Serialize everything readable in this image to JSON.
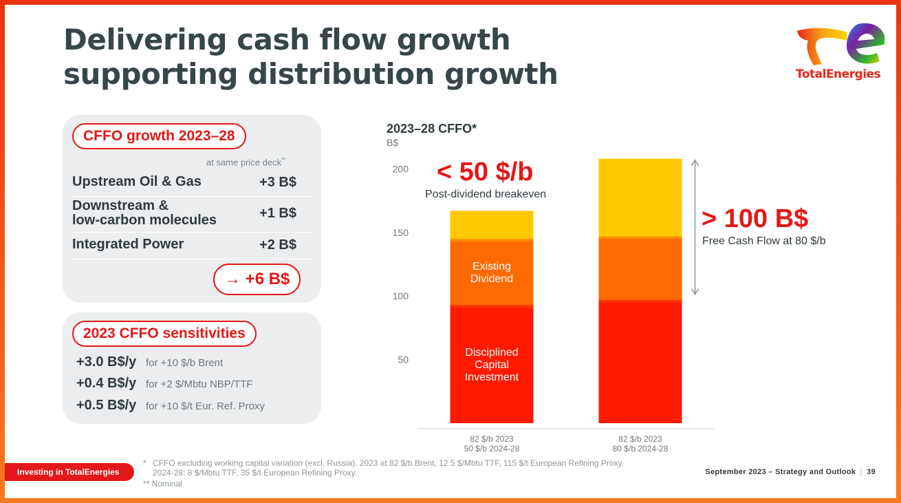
{
  "title": {
    "line1": "Delivering cash flow growth",
    "line2": "supporting distribution growth"
  },
  "brand": {
    "name": "TotalEnergies"
  },
  "growth_panel": {
    "heading": "CFFO growth 2023–28",
    "note": "at same price deck",
    "note_mark": "**",
    "rows": [
      {
        "label_line1": "Upstream Oil & Gas",
        "label_line2": "",
        "value": "+3 B$"
      },
      {
        "label_line1": "Downstream &",
        "label_line2": "low-carbon molecules",
        "value": "+1 B$"
      },
      {
        "label_line1": "Integrated Power",
        "label_line2": "",
        "value": "+2 B$"
      }
    ],
    "total": "+6 B$",
    "total_arrow": "→"
  },
  "sensitivities_panel": {
    "heading": "2023 CFFO sensitivities",
    "rows": [
      {
        "value": "+3.0 B$/y",
        "note": "for +10 $/b Brent"
      },
      {
        "value": "+0.4 B$/y",
        "note": "for +2 $/Mbtu NBP/TTF"
      },
      {
        "value": "+0.5 B$/y",
        "note": "for +10 $/t Eur. Ref. Proxy"
      }
    ]
  },
  "chart_data": {
    "type": "bar",
    "stacked": true,
    "title": "2023–28 CFFO*",
    "ylabel": "B$",
    "ylim": [
      0,
      210
    ],
    "yticks": [
      50,
      100,
      150,
      200
    ],
    "grid": false,
    "categories": [
      "82 $/b 2023 / 50 $/b 2024-28",
      "82 $/b 2023 / 80 $/b 2024-28"
    ],
    "category_lines": [
      [
        "82 $/b 2023",
        "50 $/b 2024-28"
      ],
      [
        "82 $/b 2023",
        "80 $/b 2024-28"
      ]
    ],
    "series": [
      {
        "name": "Disciplined Capital Investment",
        "label_lines": [
          "Disciplined",
          "Capital",
          "Investment"
        ],
        "color": "#ff1a00",
        "values": [
          93,
          97
        ]
      },
      {
        "name": "Existing Dividend",
        "label_lines": [
          "Existing",
          "Dividend"
        ],
        "color": "#ff6a00",
        "values": [
          52,
          50
        ]
      },
      {
        "name": "",
        "label_lines": [],
        "color": "#ffc800",
        "values": [
          22,
          61
        ]
      }
    ],
    "series_label_bar": 0
  },
  "callouts": {
    "breakeven_value": "< 50 $/b",
    "breakeven_label": "Post-dividend breakeven",
    "fcf_value": "> 100 B$",
    "fcf_label": "Free Cash Flow at 80 $/b"
  },
  "footer": {
    "section": "Investing in TotalEnergies",
    "footnote1_mark": "*",
    "footnote1_line1": "CFFO excluding working capital variation (excl. Russia). 2023 at 82 $/b Brent, 12.5 $/Mbtu TTF, 115 $/t European Refining Proxy.",
    "footnote1_line2": "2024-28: 8 $/Mbtu TTF, 35 $/t European Refining Proxy.",
    "footnote2": "** Nominal",
    "event": "September 2023 – Strategy and Outlook",
    "separator": "|",
    "page": "39"
  },
  "colors": {
    "accent_red": "#e31818",
    "text_dark": "#2e3a3e",
    "panel_bg": "#ecedee"
  }
}
